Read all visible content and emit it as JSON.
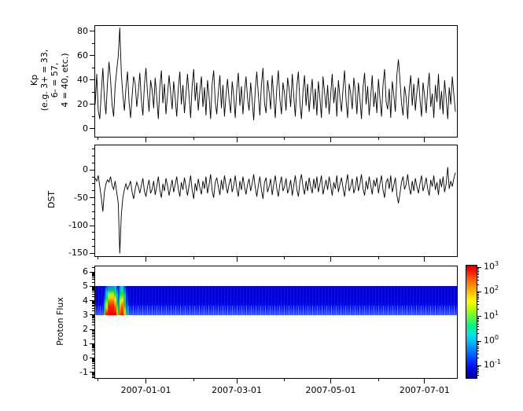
{
  "figure": {
    "description": "Three stacked geomagnetic/space-weather time-series panels with shared date axis and a log colorbar",
    "background": "#ffffff",
    "line_color": "#000000"
  },
  "xaxis": {
    "span_days": 235,
    "start_date": "2006-11-29",
    "major": [
      {
        "day": 33,
        "label": "2007-01-01"
      },
      {
        "day": 92,
        "label": "2007-03-01"
      },
      {
        "day": 153,
        "label": "2007-05-01"
      },
      {
        "day": 214,
        "label": "2007-07-01"
      }
    ],
    "minor_days": [
      2,
      64,
      123,
      184
    ]
  },
  "chart_data": [
    {
      "type": "line",
      "name": "Kp",
      "ylabel_multiline": "Kp\n(e.g. 3+ = 33,\n6- = 57,\n4 = 40, etc.)",
      "ylim": [
        -6.5,
        84.5
      ],
      "yticks": [
        80,
        60,
        40,
        20,
        0
      ],
      "yticks_minor": [
        70,
        50,
        30,
        10
      ],
      "values": [
        20,
        45,
        15,
        8,
        30,
        50,
        25,
        12,
        38,
        55,
        40,
        20,
        10,
        35,
        48,
        60,
        83,
        45,
        28,
        15,
        33,
        47,
        22,
        9,
        27,
        43,
        37,
        18,
        30,
        46,
        24,
        11,
        36,
        50,
        29,
        14,
        40,
        32,
        17,
        42,
        26,
        8,
        34,
        48,
        21,
        37,
        12,
        28,
        44,
        30,
        16,
        39,
        25,
        10,
        33,
        47,
        20,
        36,
        13,
        29,
        45,
        27,
        9,
        35,
        49,
        23,
        38,
        15,
        31,
        43,
        18,
        34,
        11,
        40,
        26,
        8,
        37,
        48,
        22,
        12,
        30,
        44,
        17,
        36,
        10,
        28,
        41,
        24,
        13,
        39,
        27,
        9,
        33,
        46,
        19,
        35,
        12,
        30,
        43,
        25,
        15,
        38,
        23,
        7,
        32,
        47,
        28,
        11,
        36,
        50,
        21,
        13,
        40,
        30,
        16,
        44,
        26,
        9,
        34,
        48,
        24,
        12,
        38,
        29,
        15,
        42,
        33,
        18,
        45,
        27,
        10,
        35,
        47,
        22,
        8,
        31,
        44,
        19,
        37,
        14,
        29,
        41,
        16,
        33,
        11,
        39,
        25,
        9,
        43,
        30,
        17,
        36,
        12,
        28,
        45,
        21,
        34,
        10,
        40,
        26,
        14,
        32,
        48,
        23,
        9,
        37,
        29,
        16,
        42,
        31,
        12,
        38,
        24,
        8,
        34,
        46,
        20,
        35,
        11,
        27,
        44,
        18,
        30,
        13,
        41,
        25,
        10,
        36,
        49,
        22,
        16,
        33,
        9,
        39,
        28,
        14,
        45,
        57,
        40,
        21,
        11,
        35,
        26,
        8,
        32,
        44,
        19,
        37,
        15,
        30,
        42,
        24,
        10,
        38,
        27,
        13,
        33,
        46,
        18,
        29,
        9,
        36,
        22,
        45,
        16,
        31,
        12,
        40,
        25,
        8,
        34,
        20,
        43,
        28,
        14
      ]
    },
    {
      "type": "line",
      "name": "DST",
      "ylabel": "DST",
      "ylim": [
        -155,
        44
      ],
      "yticks": [
        0,
        -50,
        -100,
        -150
      ],
      "yticks_minor": [
        37.5,
        25,
        12.5,
        -12.5,
        -25,
        -37.5,
        -62.5,
        -75,
        -87.5,
        -112.5,
        -125,
        -137.5
      ],
      "values": [
        -15,
        -20,
        -10,
        -30,
        -50,
        -75,
        -40,
        -25,
        -18,
        -22,
        -12,
        -28,
        -35,
        -20,
        -40,
        -60,
        -150,
        -80,
        -50,
        -35,
        -25,
        -35,
        -28,
        -20,
        -40,
        -52,
        -35,
        -22,
        -30,
        -42,
        -28,
        -15,
        -38,
        -48,
        -30,
        -18,
        -42,
        -35,
        -20,
        -45,
        -30,
        -12,
        -36,
        -50,
        -25,
        -38,
        -15,
        -28,
        -46,
        -32,
        -18,
        -40,
        -26,
        -12,
        -34,
        -48,
        -22,
        -36,
        -14,
        -30,
        -46,
        -28,
        -10,
        -36,
        -52,
        -24,
        -38,
        -16,
        -32,
        -44,
        -20,
        -34,
        -12,
        -42,
        -26,
        -8,
        -38,
        -50,
        -22,
        -14,
        -30,
        -45,
        -18,
        -36,
        -10,
        -28,
        -42,
        -25,
        -15,
        -40,
        -28,
        -10,
        -34,
        -48,
        -20,
        -36,
        -12,
        -30,
        -44,
        -26,
        -16,
        -38,
        -24,
        -8,
        -32,
        -48,
        -28,
        -12,
        -36,
        -52,
        -22,
        -14,
        -40,
        -30,
        -16,
        -45,
        -26,
        -10,
        -34,
        -48,
        -25,
        -12,
        -38,
        -30,
        -15,
        -42,
        -33,
        -18,
        -46,
        -28,
        -10,
        -35,
        -48,
        -22,
        -8,
        -31,
        -44,
        -20,
        -38,
        -14,
        -30,
        -42,
        -16,
        -34,
        -12,
        -40,
        -25,
        -10,
        -44,
        -30,
        -18,
        -36,
        -12,
        -28,
        -46,
        -22,
        -34,
        -10,
        -40,
        -26,
        -14,
        -32,
        -48,
        -24,
        -8,
        -38,
        -30,
        -16,
        -42,
        -32,
        -12,
        -38,
        -25,
        -8,
        -34,
        -46,
        -20,
        -35,
        -12,
        -28,
        -44,
        -18,
        -30,
        -14,
        -42,
        -25,
        -10,
        -36,
        -50,
        -22,
        -16,
        -34,
        -10,
        -40,
        -28,
        -14,
        -46,
        -60,
        -42,
        -22,
        -12,
        -35,
        -26,
        -8,
        -32,
        -44,
        -20,
        -38,
        -15,
        -30,
        -42,
        -24,
        -10,
        -38,
        -28,
        -14,
        -34,
        -46,
        -18,
        -30,
        -10,
        -36,
        -22,
        -45,
        -16,
        -31,
        -12,
        -40,
        -25,
        5,
        -34,
        -20,
        -30,
        -15,
        -5
      ]
    },
    {
      "type": "heatmap",
      "name": "Proton Flux",
      "ylabel": "Proton Flux",
      "ylim": [
        -1.4,
        6.4
      ],
      "yticks": [
        6,
        5,
        4,
        3,
        2,
        1,
        0,
        -1
      ],
      "log_minor_y": true,
      "band_value_range": [
        3,
        5
      ],
      "scale": "log",
      "flux_range": [
        0.1,
        1000
      ],
      "background_flux": 0.15,
      "event": {
        "start_day": 6,
        "end_day": 22,
        "peak_flux": 1000,
        "note": "two intense plumes early in record, rest low uniform flux"
      },
      "render": {
        "band_gradient": "#0000d2 0%, #0000dc 55%, #0012e8 72%, #2236f0 88%, #3a57f5 100%",
        "columns": [
          {
            "l": 11,
            "w": 2,
            "g": "#0000dd 0%, #0033ee 35%, #00aaff 65%, #00cc66 85%, #55dd22 100%"
          },
          {
            "l": 13,
            "w": 3,
            "g": "#0044dd 0%, #00bbff 22%, #00dd44 42%, #aaee00 60%, #ffcc00 75%, #ff5500 88%, #ee1100 100%"
          },
          {
            "l": 16,
            "w": 8,
            "g": "#0088ee 0%, #00cc55 15%, #bbee00 28%, #ffcc00 40%, #ff7700 52%, #ff2200 68%, #ee0000 100%"
          },
          {
            "l": 24,
            "w": 3,
            "g": "#00aaff 0%, #00dd66 25%, #ffee00 48%, #ff9900 65%, #ff3300 82%, #dd0000 100%"
          },
          {
            "l": 27,
            "w": 2,
            "g": "#0033dd 0%, #00bbee 30%, #00cc44 55%, #88dd00 75%, #ffbb00 90%, #ff8800 100%"
          },
          {
            "l": 29,
            "w": 2,
            "g": "#0011dd 0%, #0077ee 45%, #00bb88 75%, #44cc22 100%"
          },
          {
            "l": 31,
            "w": 2,
            "g": "#00aaee 0%, #00dd55 30%, #eeff00 55%, #ff9900 75%, #ff3300 100%"
          },
          {
            "l": 33,
            "w": 3,
            "g": "#00ccff 0%, #33dd22 28%, #ffee00 48%, #ff6600 68%, #ee1100 100%"
          },
          {
            "l": 36,
            "w": 3,
            "g": "#0044dd 0%, #00ccee 35%, #22cc44 65%, #bbee00 88%, #ddcc00 100%"
          },
          {
            "l": 39,
            "w": 3,
            "g": "#0000dd 0%, #0044ee 55%, #0099dd 80%, #33bb66 100%"
          }
        ]
      }
    }
  ],
  "colorbar": {
    "tick_base": "10",
    "tick_exps": [
      3,
      2,
      1,
      0,
      -1
    ],
    "log_range": [
      -1.5,
      3.07
    ],
    "colormap": "jet",
    "stops": [
      [
        "#cc0000",
        0
      ],
      [
        "#ff0000",
        3
      ],
      [
        "#ff5500",
        11
      ],
      [
        "#ff9900",
        19
      ],
      [
        "#ffdd00",
        27
      ],
      [
        "#fffb00",
        32
      ],
      [
        "#b8ff00",
        38
      ],
      [
        "#55ff44",
        46
      ],
      [
        "#00f090",
        54
      ],
      [
        "#00e8e0",
        61
      ],
      [
        "#00b8ff",
        68
      ],
      [
        "#0080ff",
        75
      ],
      [
        "#0040ff",
        83
      ],
      [
        "#0010f0",
        90
      ],
      [
        "#0000cf",
        95
      ],
      [
        "#000090",
        100
      ]
    ]
  }
}
